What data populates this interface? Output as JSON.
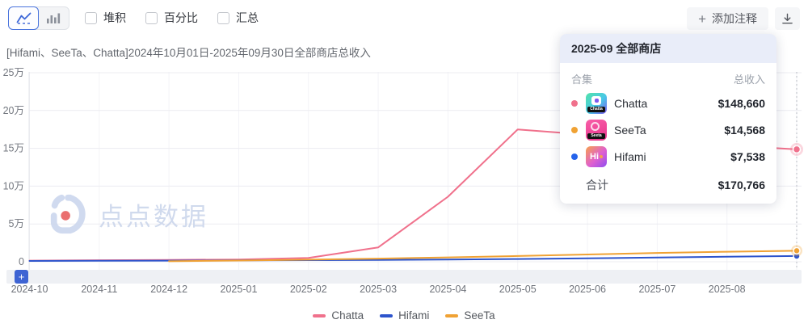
{
  "toolbar": {
    "checkboxes": [
      {
        "label": "堆积",
        "checked": false
      },
      {
        "label": "百分比",
        "checked": false
      },
      {
        "label": "汇总",
        "checked": false
      }
    ],
    "add_annotation": {
      "plus": "+",
      "label": "添加注释"
    },
    "axis_plus": "+"
  },
  "title": "[Hifami、SeeTa、Chatta]2024年10月01日-2025年09月30日全部商店总收入",
  "watermark": "点点数据",
  "tooltip": {
    "header": "2025-09 全部商店",
    "col_left": "合集",
    "col_right": "总收入",
    "rows": [
      {
        "name": "Chatta",
        "value": "$148,660",
        "dot_color": "#f0718c",
        "icon_text": "Chatta"
      },
      {
        "name": "SeeTa",
        "value": "$14,568",
        "dot_color": "#f0a234",
        "icon_text": "Seeta"
      },
      {
        "name": "Hifami",
        "value": "$7,538",
        "dot_color": "#2563eb",
        "icon_text": "Hi"
      }
    ],
    "total_label": "合计",
    "total_value": "$170,766"
  },
  "legend": [
    {
      "name": "Chatta",
      "color": "#f0718c"
    },
    {
      "name": "Hifami",
      "color": "#2d54cc"
    },
    {
      "name": "SeeTa",
      "color": "#f0a234"
    }
  ],
  "chart_data": {
    "type": "line",
    "title": "[Hifami、SeeTa、Chatta]2024年10月01日-2025年09月30日全部商店总收入",
    "x": [
      "2024-10",
      "2024-11",
      "2024-12",
      "2025-01",
      "2025-02",
      "2025-03",
      "2025-04",
      "2025-05",
      "2025-06",
      "2025-07",
      "2025-08",
      "2025-09"
    ],
    "x_visible_ticks": [
      "2024-10",
      "2024-11",
      "2024-12",
      "2025-01",
      "2025-02",
      "2025-03",
      "2025-04",
      "2025-05",
      "2025-06",
      "2025-07",
      "2025-08"
    ],
    "y_ticks": [
      "0",
      "5万",
      "10万",
      "15万",
      "20万",
      "25万"
    ],
    "y_tick_values": [
      0,
      50000,
      100000,
      150000,
      200000,
      250000
    ],
    "ylim": [
      0,
      250000
    ],
    "grid": true,
    "legend_position": "bottom",
    "hover_x": "2025-09",
    "series": [
      {
        "name": "Chatta",
        "color": "#f0718c",
        "values": [
          1500,
          2000,
          2500,
          3000,
          5000,
          19000,
          86000,
          175000,
          168000,
          161000,
          154000,
          148660
        ]
      },
      {
        "name": "Hifami",
        "color": "#2d54cc",
        "values": [
          1100,
          1300,
          1500,
          1800,
          2100,
          2500,
          3000,
          3600,
          4600,
          5600,
          6600,
          7538
        ]
      },
      {
        "name": "SeeTa",
        "color": "#f0a234",
        "values": [
          null,
          null,
          600,
          1600,
          2800,
          4200,
          5800,
          7600,
          9600,
          11600,
          13200,
          14568
        ]
      }
    ],
    "hover_values": {
      "Chatta": 148660,
      "SeeTa": 14568,
      "Hifami": 7538,
      "total": 170766
    }
  }
}
